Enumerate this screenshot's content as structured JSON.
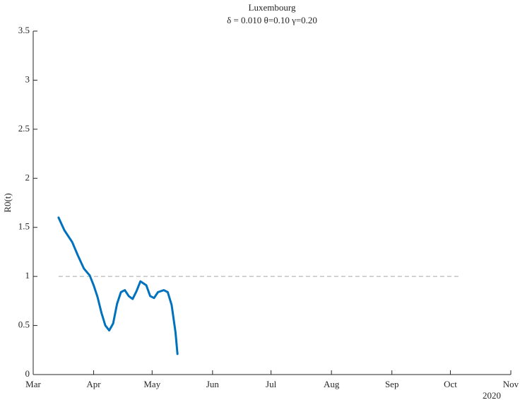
{
  "chart_data": {
    "type": "line",
    "title": "Luxembourg",
    "subtitle": "δ = 0.010  θ=0.10  γ=0.20",
    "y_label": "R0(t)",
    "x_annotation": "2020",
    "xlim": [
      0,
      245
    ],
    "xticks": [
      {
        "value": 0,
        "label": "Mar"
      },
      {
        "value": 31,
        "label": "Apr"
      },
      {
        "value": 61,
        "label": "May"
      },
      {
        "value": 92,
        "label": "Jun"
      },
      {
        "value": 122,
        "label": "Jul"
      },
      {
        "value": 153,
        "label": "Aug"
      },
      {
        "value": 184,
        "label": "Sep"
      },
      {
        "value": 214,
        "label": "Oct"
      },
      {
        "value": 245,
        "label": "Nov"
      }
    ],
    "ylim": [
      0,
      3.5
    ],
    "yticks": [
      0,
      0.5,
      1,
      1.5,
      2,
      2.5,
      3,
      3.5
    ],
    "x": [
      13,
      16,
      20,
      23,
      26,
      29,
      31,
      33,
      35,
      37,
      39,
      41,
      43,
      45,
      47,
      49,
      51,
      53,
      55,
      58,
      60,
      62,
      64,
      67,
      69,
      71,
      73,
      74
    ],
    "series": [
      {
        "name": "R0(t)",
        "color": "#0072bd",
        "values": [
          1.6,
          1.47,
          1.35,
          1.21,
          1.08,
          1.01,
          0.91,
          0.79,
          0.63,
          0.5,
          0.45,
          0.52,
          0.72,
          0.84,
          0.86,
          0.8,
          0.77,
          0.85,
          0.95,
          0.91,
          0.8,
          0.78,
          0.84,
          0.86,
          0.84,
          0.71,
          0.43,
          0.21
        ]
      }
    ],
    "reference_line": {
      "y": 1,
      "x": [
        13,
        219
      ],
      "color": "#a6a6a6"
    }
  }
}
